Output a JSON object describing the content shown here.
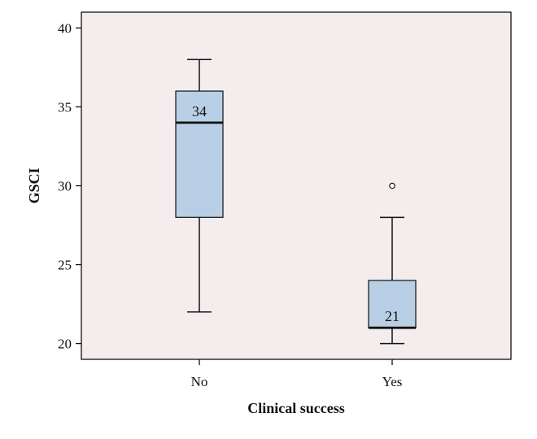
{
  "chart_data": {
    "type": "box",
    "xlabel": "Clinical success",
    "ylabel": "GSCI",
    "ylim": [
      19,
      41
    ],
    "yticks": [
      20,
      25,
      30,
      35,
      40
    ],
    "categories": [
      "No",
      "Yes"
    ],
    "boxes": [
      {
        "category": "No",
        "min": 22,
        "q1": 28,
        "median": 34,
        "q3": 36,
        "max": 38,
        "outliers": [],
        "median_label": "34"
      },
      {
        "category": "Yes",
        "min": 20,
        "q1": 21,
        "median": 21,
        "q3": 24,
        "max": 28,
        "outliers": [
          30
        ],
        "median_label": "21"
      }
    ],
    "grid": false,
    "colors": {
      "plot_background": "#f3edee",
      "box_fill": "#b9cfe6",
      "stroke": "#111111"
    }
  }
}
